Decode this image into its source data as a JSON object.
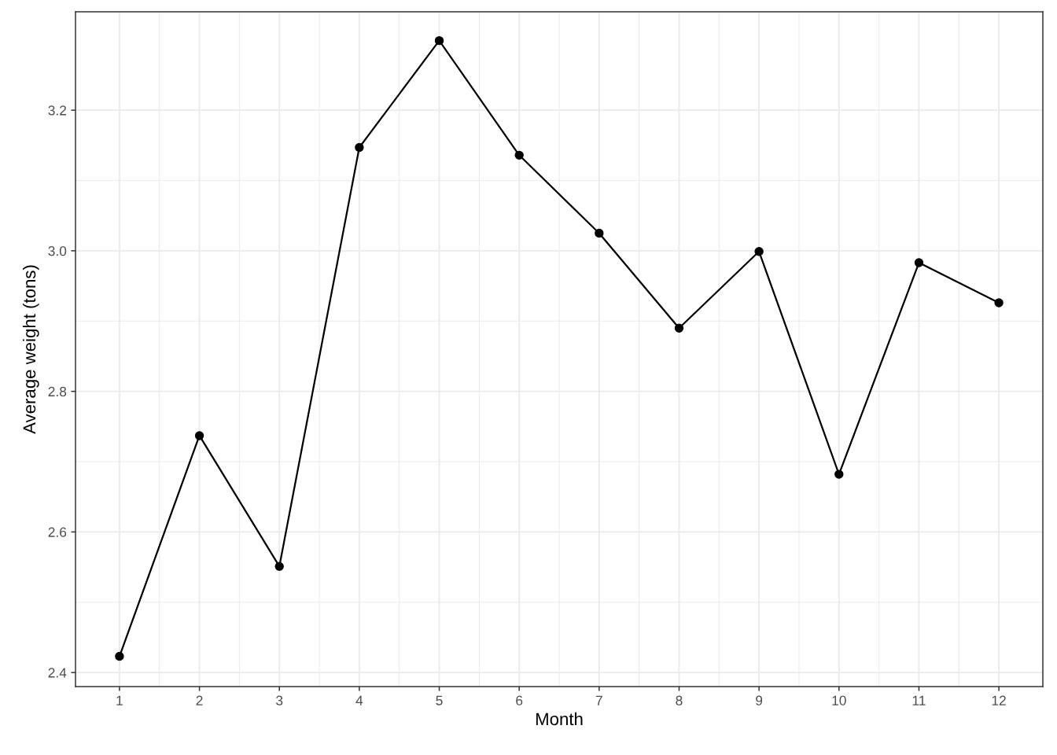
{
  "chart_data": {
    "type": "line",
    "xlabel": "Month",
    "ylabel": "Average weight (tons)",
    "x": [
      1,
      2,
      3,
      4,
      5,
      6,
      7,
      8,
      9,
      10,
      11,
      12
    ],
    "values": [
      2.423,
      2.737,
      2.551,
      3.147,
      3.299,
      3.136,
      3.025,
      2.89,
      2.999,
      2.682,
      2.983,
      2.926
    ],
    "color": "#000000",
    "marker": "circle",
    "line_style": "solid",
    "grid": true,
    "xlim": [
      0.45,
      12.55
    ],
    "ylim": [
      2.38,
      3.34
    ],
    "xticks": [
      1,
      2,
      3,
      4,
      5,
      6,
      7,
      8,
      9,
      10,
      11,
      12
    ],
    "yticks": [
      2.4,
      2.6,
      2.8,
      {
        "value": 3.0,
        "label": "3.0"
      },
      3.2
    ]
  }
}
